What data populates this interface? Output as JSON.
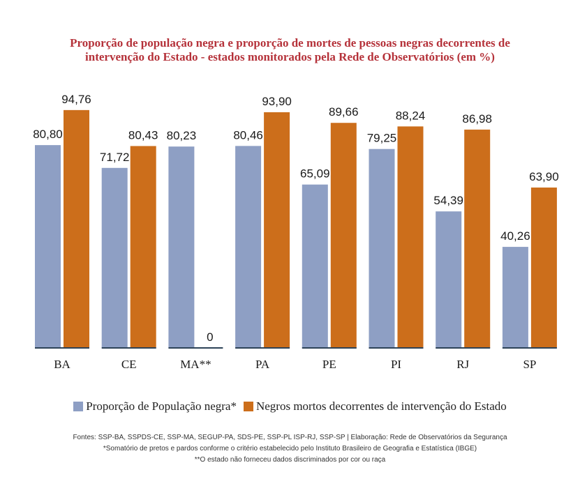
{
  "title_line1": "Proporção de população negra e proporção de mortes de pessoas negras decorrentes de",
  "title_line2": "intervenção do Estado - estados monitorados pela Rede de Observatórios (em %)",
  "colors": {
    "series1": "#8e9fc4",
    "series2": "#cc6e1b",
    "axis": "#2d4257",
    "title": "#b5323a"
  },
  "legend": {
    "series1": "Proporção de População negra*",
    "series2": "Negros mortos decorrentes de intervenção do Estado"
  },
  "notes": {
    "line1": "Fontes: SSP-BA, SSPDS-CE, SSP-MA, SEGUP-PA, SDS-PE, SSP-PL ISP-RJ, SSP-SP | Elaboração: Rede de Observatórios da Segurança",
    "line2": "*Somatório de pretos e pardos conforme o critério estabelecido pelo Instituto Brasileiro de Geografia e Estatística (IBGE)",
    "line3": "**O estado não forneceu dados discriminados por cor ou raça"
  },
  "chart_data": {
    "type": "bar",
    "title": "Proporção de população negra e proporção de mortes de pessoas negras decorrentes de intervenção do Estado - estados monitorados pela Rede de Observatórios (em %)",
    "categories": [
      "BA",
      "CE",
      "MA**",
      "PA",
      "PE",
      "PI",
      "RJ",
      "SP"
    ],
    "series": [
      {
        "name": "Proporção de População negra*",
        "values": [
          80.8,
          71.72,
          80.23,
          80.46,
          65.09,
          79.25,
          54.39,
          40.26
        ],
        "labels": [
          "80,80",
          "71,72",
          "80,23",
          "80,46",
          "65,09",
          "79,25",
          "54,39",
          "40,26"
        ]
      },
      {
        "name": "Negros mortos decorrentes de intervenção do Estado",
        "values": [
          94.76,
          80.43,
          0,
          93.9,
          89.66,
          88.24,
          86.98,
          63.9
        ],
        "labels": [
          "94,76",
          "80,43",
          "0",
          "93,90",
          "89,66",
          "88,24",
          "86,98",
          "63,90"
        ]
      }
    ],
    "xlabel": "",
    "ylabel": "",
    "ylim": [
      0,
      100
    ],
    "grid": false,
    "legend_position": "bottom"
  }
}
